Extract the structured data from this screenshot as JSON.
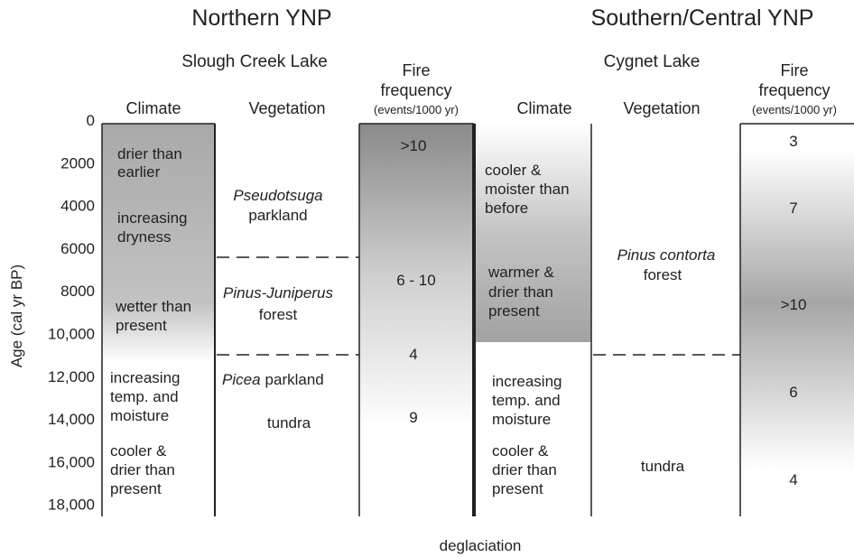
{
  "header": {
    "north": {
      "title": "Northern YNP",
      "site": "Slough Creek Lake"
    },
    "south": {
      "title": "Southern/Central YNP",
      "site": "Cygnet Lake"
    }
  },
  "columns": {
    "climate": "Climate",
    "vegetation": "Vegetation",
    "fire": [
      "Fire",
      "frequency",
      "(events/1000 yr)"
    ]
  },
  "axis": {
    "label": "Age (cal yr BP)",
    "ticks": [
      "0",
      "2000",
      "4000",
      "6000",
      "8000",
      "10,000",
      "12,000",
      "14,000",
      "16,000",
      "18,000"
    ]
  },
  "north": {
    "climate": [
      [
        "drier than",
        "earlier"
      ],
      [
        "increasing",
        "dryness"
      ],
      [
        "wetter than",
        "present"
      ],
      [
        "increasing",
        "temp. and",
        "moisture"
      ],
      [
        "cooler &",
        "drier than",
        "present"
      ]
    ],
    "vegetation": [
      {
        "italic": "Pseudotsuga",
        "rest": "parkland"
      },
      {
        "italic": "Pinus-Juniperus",
        "rest": "forest"
      },
      {
        "italic": "Picea",
        "rest": "parkland"
      },
      {
        "rest": "tundra"
      }
    ],
    "fire": [
      ">10",
      "6 - 10",
      "4",
      "9"
    ]
  },
  "south": {
    "climate": [
      [
        "cooler &",
        "moister than",
        "before"
      ],
      [
        "warmer &",
        "drier than",
        "present"
      ],
      [
        "increasing",
        "temp. and",
        "moisture"
      ],
      [
        "cooler &",
        "drier than",
        "present"
      ]
    ],
    "vegetation": [
      {
        "italic": "Pinus contorta",
        "rest": "forest"
      },
      {
        "rest": "tundra"
      }
    ],
    "fire": [
      "3",
      "7",
      ">10",
      "6",
      "4"
    ]
  },
  "footer": "deglaciation"
}
